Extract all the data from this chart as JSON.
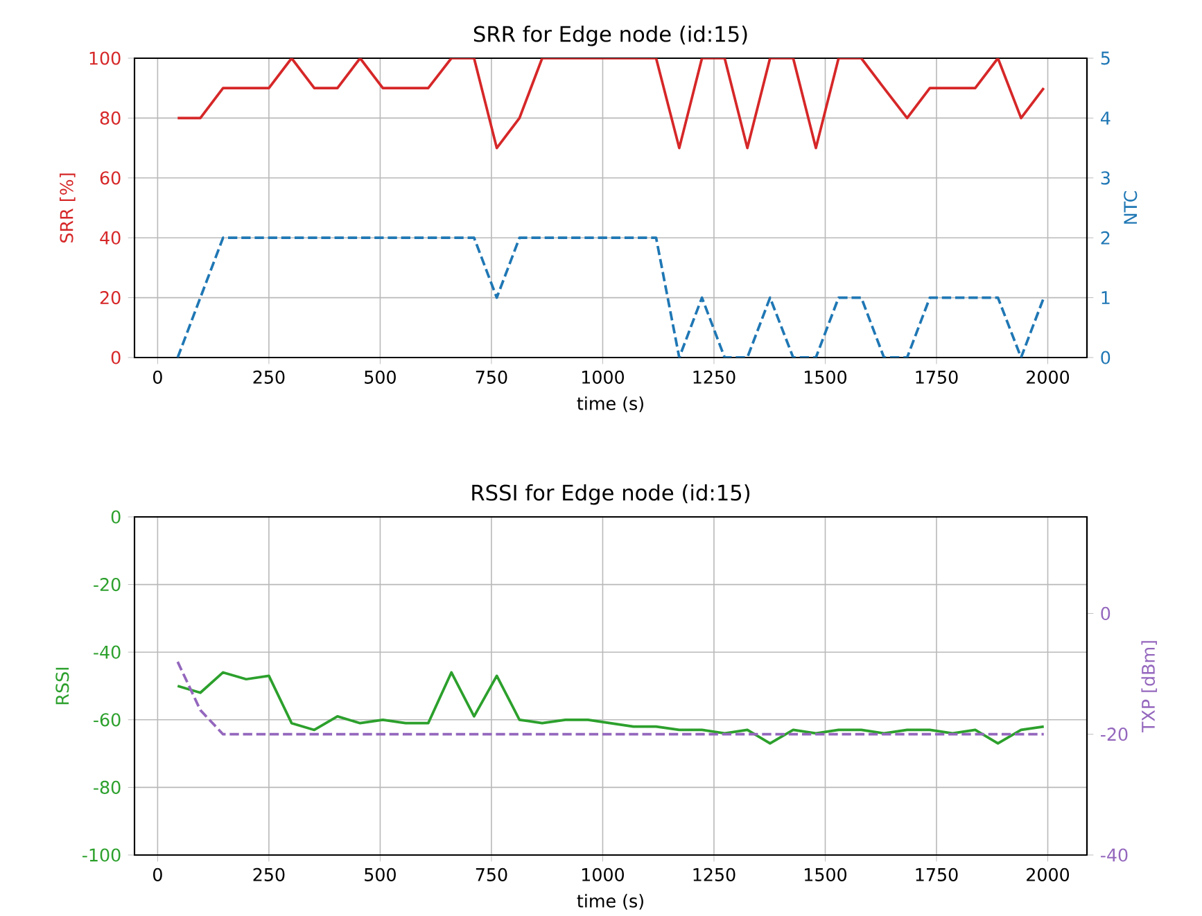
{
  "chart_data": [
    {
      "type": "line",
      "title": "SRR for Edge node (id:15)",
      "xlabel": "time (s)",
      "ylabel": "SRR [%]",
      "y2label": "NTC",
      "x": [
        45,
        96,
        147,
        199,
        250,
        301,
        352,
        404,
        455,
        506,
        557,
        608,
        660,
        711,
        762,
        813,
        864,
        916,
        967,
        1018,
        1069,
        1120,
        1172,
        1223,
        1274,
        1325,
        1376,
        1428,
        1479,
        1530,
        1581,
        1632,
        1684,
        1735,
        1786,
        1837,
        1888,
        1940,
        1991
      ],
      "xlim": [
        -52,
        2088
      ],
      "xticks": [
        0,
        250,
        500,
        750,
        1000,
        1250,
        1500,
        1750,
        2000
      ],
      "ylim": [
        0,
        100
      ],
      "yticks": [
        0,
        20,
        40,
        60,
        80,
        100
      ],
      "y2lim": [
        0,
        5
      ],
      "y2ticks": [
        0,
        1,
        2,
        3,
        4,
        5
      ],
      "grid": true,
      "series": [
        {
          "color": "#d62728",
          "line_style": "solid",
          "values": [
            80,
            80,
            90,
            90,
            90,
            100,
            90,
            90,
            100,
            90,
            90,
            90,
            100,
            100,
            70,
            80,
            100,
            100,
            100,
            100,
            100,
            100,
            70,
            100,
            100,
            70,
            100,
            100,
            70,
            100,
            100,
            90,
            80,
            90,
            90,
            90,
            100,
            80,
            90
          ]
        },
        {
          "color": "#1f77b4",
          "line_style": "dashed",
          "axis": "y2",
          "values": [
            0,
            1,
            2,
            2,
            2,
            2,
            2,
            2,
            2,
            2,
            2,
            2,
            2,
            2,
            1,
            2,
            2,
            2,
            2,
            2,
            2,
            2,
            0,
            1,
            0,
            0,
            1,
            0,
            0,
            1,
            1,
            0,
            0,
            1,
            1,
            1,
            1,
            0,
            1
          ]
        }
      ]
    },
    {
      "type": "line",
      "title": "RSSI for Edge node (id:15)",
      "xlabel": "time (s)",
      "ylabel": "RSSI",
      "y2label": "TXP [dBm]",
      "x": [
        45,
        96,
        147,
        199,
        250,
        301,
        352,
        404,
        455,
        506,
        557,
        608,
        660,
        711,
        762,
        813,
        864,
        916,
        967,
        1018,
        1069,
        1120,
        1172,
        1223,
        1274,
        1325,
        1376,
        1428,
        1479,
        1530,
        1581,
        1632,
        1684,
        1735,
        1786,
        1837,
        1888,
        1940,
        1991
      ],
      "xlim": [
        -52,
        2088
      ],
      "xticks": [
        0,
        250,
        500,
        750,
        1000,
        1250,
        1500,
        1750,
        2000
      ],
      "ylim": [
        -100,
        0
      ],
      "yticks": [
        -100,
        -80,
        -60,
        -40,
        -20,
        0
      ],
      "y2lim": [
        -40,
        16
      ],
      "y2ticks": [
        -40,
        -20,
        0
      ],
      "grid": true,
      "series": [
        {
          "color": "#2ca02c",
          "line_style": "solid",
          "values": [
            -50,
            -52,
            -46,
            -48,
            -47,
            -61,
            -63,
            -59,
            -61,
            -60,
            -61,
            -61,
            -46,
            -59,
            -47,
            -60,
            -61,
            -60,
            -60,
            -61,
            -62,
            -62,
            -63,
            -63,
            -64,
            -63,
            -67,
            -63,
            -64,
            -63,
            -63,
            -64,
            -63,
            -63,
            -64,
            -63,
            -67,
            -63,
            -62
          ]
        },
        {
          "color": "#9467bd",
          "line_style": "dashed",
          "axis": "y2",
          "values": [
            -8,
            -16,
            -20,
            -20,
            -20,
            -20,
            -20,
            -20,
            -20,
            -20,
            -20,
            -20,
            -20,
            -20,
            -20,
            -20,
            -20,
            -20,
            -20,
            -20,
            -20,
            -20,
            -20,
            -20,
            -20,
            -20,
            -20,
            -20,
            -20,
            -20,
            -20,
            -20,
            -20,
            -20,
            -20,
            -20,
            -20,
            -20,
            -20
          ]
        }
      ]
    }
  ]
}
